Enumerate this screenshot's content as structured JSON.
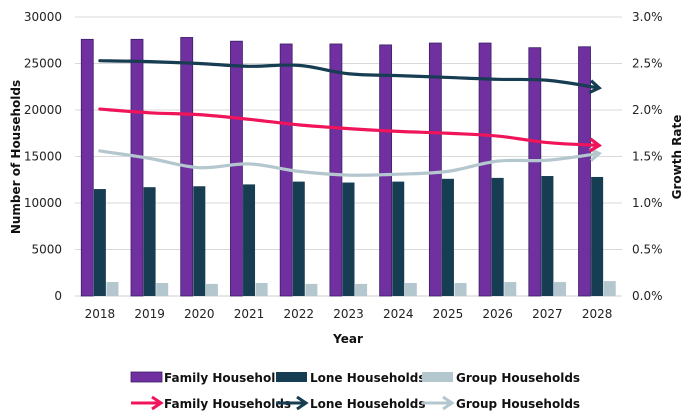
{
  "chart_data": {
    "type": "bar+line",
    "title": "",
    "categories": [
      "2018",
      "2019",
      "2020",
      "2021",
      "2022",
      "2023",
      "2024",
      "2025",
      "2026",
      "2027",
      "2028"
    ],
    "xlabel": "Year",
    "ylabel": "Number of Households",
    "y2label": "Growth Rate",
    "ylim": [
      0,
      30000
    ],
    "y2lim": [
      0,
      3.0
    ],
    "yticks": [
      "0",
      "5000",
      "10000",
      "15000",
      "20000",
      "25000",
      "30000"
    ],
    "y2ticks": [
      "0.0%",
      "0.5%",
      "1.0%",
      "1.5%",
      "2.0%",
      "2.5%",
      "3.0%"
    ],
    "grid": true,
    "legend_position": "bottom",
    "bar_series": [
      {
        "name": "Family Households",
        "color": "#7030A0",
        "values": [
          27600,
          27600,
          27800,
          27400,
          27100,
          27100,
          27000,
          27200,
          27200,
          26700,
          26800
        ]
      },
      {
        "name": "Lone Households",
        "color": "#173D52",
        "values": [
          11500,
          11700,
          11800,
          12000,
          12300,
          12200,
          12300,
          12600,
          12700,
          12900,
          12800
        ]
      },
      {
        "name": "Group Households",
        "color": "#B4C7CE",
        "values": [
          1500,
          1400,
          1300,
          1400,
          1300,
          1300,
          1400,
          1400,
          1500,
          1500,
          1600
        ]
      }
    ],
    "line_series": [
      {
        "name": "Family Households",
        "color": "#F0145A",
        "axis": "right",
        "unit": "%",
        "values": [
          2.01,
          1.97,
          1.95,
          1.9,
          1.84,
          1.8,
          1.77,
          1.75,
          1.72,
          1.65,
          1.62
        ]
      },
      {
        "name": "Lone Households",
        "color": "#173D52",
        "axis": "right",
        "unit": "%",
        "values": [
          2.53,
          2.52,
          2.5,
          2.47,
          2.48,
          2.39,
          2.37,
          2.35,
          2.33,
          2.32,
          2.24
        ]
      },
      {
        "name": "Group Households",
        "color": "#B4C7CE",
        "axis": "right",
        "unit": "%",
        "values": [
          1.56,
          1.48,
          1.38,
          1.42,
          1.34,
          1.3,
          1.31,
          1.34,
          1.45,
          1.46,
          1.53
        ]
      }
    ],
    "legend": {
      "bars": [
        "Family Households",
        "Lone Households",
        "Group Households"
      ],
      "lines": [
        "Family Households",
        "Lone Households",
        "Group Households"
      ]
    }
  }
}
